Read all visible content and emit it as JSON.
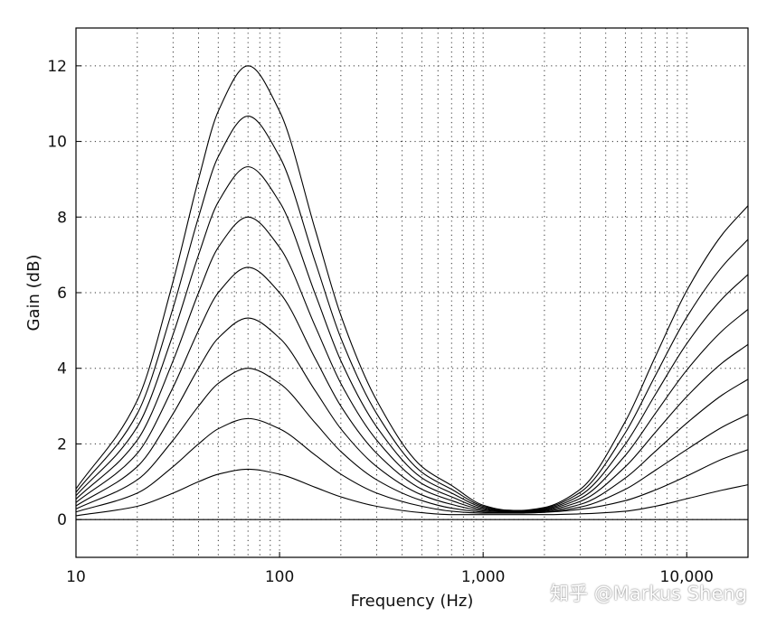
{
  "watermark": "知乎 @Markus Sheng",
  "chart_data": {
    "type": "line",
    "xlabel": "Frequency (Hz)",
    "ylabel": "Gain (dB)",
    "xscale": "log",
    "xlim": [
      10,
      20000
    ],
    "ylim": [
      -1,
      13
    ],
    "x_tick_labels": [
      "10",
      "100",
      "1,000",
      "10,000"
    ],
    "y_tick_labels": [
      "0",
      "2",
      "4",
      "6",
      "8",
      "10",
      "12"
    ],
    "grid": "dotted, minor log gridlines on x, major on y",
    "legend": "none",
    "line_color": "#000000",
    "x": [
      10,
      20,
      30,
      40,
      50,
      70,
      100,
      150,
      200,
      300,
      500,
      700,
      1000,
      1300,
      1500,
      2000,
      3000,
      5000,
      7000,
      10000,
      15000,
      20000
    ],
    "series": [
      {
        "values": [
          0,
          0,
          0,
          0,
          0,
          0,
          0,
          0,
          0,
          0,
          0,
          0,
          0,
          0,
          0,
          0,
          0,
          0,
          0,
          0,
          0,
          0
        ]
      },
      {
        "values": [
          0.1,
          0.35,
          0.7,
          1.0,
          1.2,
          1.33,
          1.2,
          0.85,
          0.6,
          0.35,
          0.18,
          0.13,
          0.13,
          0.13,
          0.13,
          0.13,
          0.15,
          0.22,
          0.35,
          0.55,
          0.78,
          0.92
        ]
      },
      {
        "values": [
          0.2,
          0.7,
          1.4,
          2.0,
          2.4,
          2.67,
          2.4,
          1.7,
          1.2,
          0.7,
          0.35,
          0.22,
          0.17,
          0.17,
          0.17,
          0.19,
          0.27,
          0.5,
          0.78,
          1.15,
          1.6,
          1.85
        ]
      },
      {
        "values": [
          0.28,
          1.05,
          2.1,
          3.0,
          3.6,
          4.0,
          3.6,
          2.55,
          1.8,
          1.05,
          0.5,
          0.3,
          0.2,
          0.18,
          0.18,
          0.2,
          0.33,
          0.8,
          1.3,
          1.85,
          2.45,
          2.78
        ]
      },
      {
        "values": [
          0.36,
          1.4,
          2.8,
          4.0,
          4.8,
          5.33,
          4.8,
          3.4,
          2.4,
          1.4,
          0.65,
          0.4,
          0.23,
          0.2,
          0.19,
          0.22,
          0.4,
          1.1,
          1.8,
          2.55,
          3.3,
          3.71
        ]
      },
      {
        "values": [
          0.45,
          1.75,
          3.5,
          5.0,
          6.0,
          6.67,
          6.0,
          4.25,
          3.0,
          1.75,
          0.8,
          0.5,
          0.26,
          0.21,
          0.2,
          0.24,
          0.48,
          1.4,
          2.3,
          3.25,
          4.15,
          4.63
        ]
      },
      {
        "values": [
          0.54,
          2.1,
          4.2,
          6.0,
          7.2,
          8.0,
          7.2,
          5.1,
          3.6,
          2.1,
          0.95,
          0.6,
          0.29,
          0.22,
          0.21,
          0.26,
          0.56,
          1.7,
          2.8,
          3.95,
          5.0,
          5.56
        ]
      },
      {
        "values": [
          0.63,
          2.45,
          4.9,
          7.0,
          8.4,
          9.33,
          8.4,
          5.95,
          4.2,
          2.45,
          1.1,
          0.7,
          0.32,
          0.23,
          0.22,
          0.28,
          0.64,
          2.0,
          3.3,
          4.65,
          5.85,
          6.48
        ]
      },
      {
        "values": [
          0.72,
          2.8,
          5.6,
          8.0,
          9.6,
          10.67,
          9.6,
          6.8,
          4.8,
          2.8,
          1.25,
          0.8,
          0.35,
          0.24,
          0.23,
          0.3,
          0.72,
          2.3,
          3.8,
          5.35,
          6.7,
          7.41
        ]
      },
      {
        "values": [
          0.81,
          3.15,
          6.3,
          9.0,
          10.8,
          12.0,
          10.8,
          7.65,
          5.4,
          3.15,
          1.4,
          0.9,
          0.38,
          0.25,
          0.24,
          0.32,
          0.8,
          2.6,
          4.3,
          6.05,
          7.55,
          8.3
        ]
      }
    ]
  }
}
